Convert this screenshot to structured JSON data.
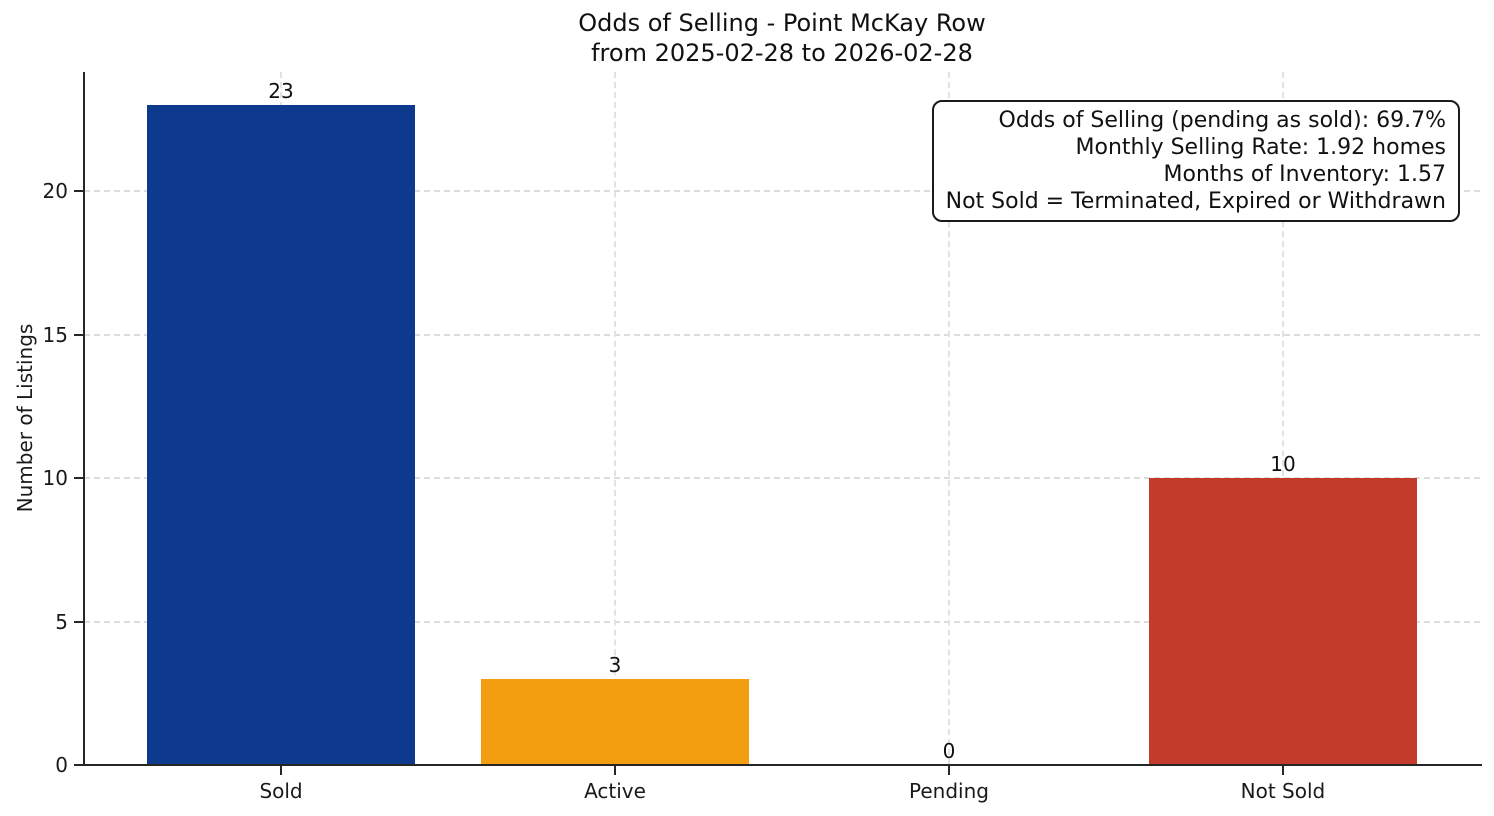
{
  "chart_data": {
    "type": "bar",
    "title_lines": [
      "Odds of Selling - Point McKay Row",
      "from 2025-02-28 to 2026-02-28"
    ],
    "categories": [
      "Sold",
      "Active",
      "Pending",
      "Not Sold"
    ],
    "values": [
      23,
      3,
      0,
      10
    ],
    "bar_colors": [
      "#0e3a8d",
      "#f39d11",
      null,
      "#c23b2b"
    ],
    "xlabel": "",
    "ylabel": "Number of Listings",
    "ylim": [
      0,
      24.15
    ],
    "yticks": [
      0,
      5,
      10,
      15,
      20
    ],
    "bar_width_fraction": 0.8,
    "grid": {
      "style": "dashed",
      "color": "#dcdcdc",
      "axes": "both"
    },
    "legend": "none",
    "annotation_position": "top-right",
    "annotation_lines": [
      "Odds of Selling (pending as sold): 69.7%",
      "Monthly Selling Rate: 1.92 homes",
      "Months of Inventory: 1.57",
      "Not Sold = Terminated, Expired or Withdrawn"
    ]
  }
}
